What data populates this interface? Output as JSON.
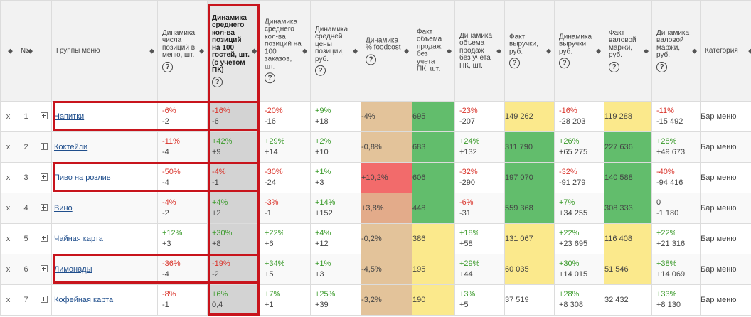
{
  "headers": {
    "x_col": "",
    "num": "№",
    "group": "Группы меню",
    "pos_count": "Динамика числа позиций в меню, шт.",
    "avg_pos_100": "Динамика среднего кол-ва позиций на 100 гостей, шт. (с учетом ПК)",
    "avg_pos_100_orders": "Динамика среднего кол-ва позиций на 100 заказов, шт.",
    "avg_price": "Динамика средней цены позиции, руб.",
    "foodcost": "Динамика % foodcost",
    "fact_sales": "Факт объема продаж без учета ПК, шт.",
    "dyn_sales": "Динамика объема продаж без учета ПК, шт.",
    "fact_revenue": "Факт выручки, руб.",
    "dyn_revenue": "Динамика выручки, руб.",
    "fact_margin": "Факт валовой маржи, руб.",
    "dyn_margin": "Динамика валовой маржи, руб.",
    "category": "Категория"
  },
  "help_symbol": "?",
  "sort_symbol": "◆",
  "colors": {
    "red_outline": "#c8141c",
    "pct_negative": "#d9342b",
    "pct_positive": "#3a9a2a",
    "cell_green": "#62bd6c",
    "cell_yellow": "#fbe98c",
    "cell_orange": "#e9b98c",
    "cell_red": "#f26b6b",
    "cell_tan": "#e3c39a",
    "highlight_column": "#d3d3d3"
  },
  "rows": [
    {
      "x": "x",
      "num": "1",
      "name": "Напитки",
      "pos_pct": "-6%",
      "pos_abs": "-2",
      "avg100_pct": "-16%",
      "avg100_abs": "-6",
      "ord_pct": "-20%",
      "ord_abs": "-16",
      "price_pct": "+9%",
      "price_abs": "+18",
      "foodcost": "-4%",
      "foodcost_color": "#e3c39a",
      "fact_sales": "695",
      "fact_sales_color": "#62bd6c",
      "dyn_sales_pct": "-23%",
      "dyn_sales_abs": "-207",
      "fact_rev": "149 262",
      "fact_rev_color": "#fbe98c",
      "dyn_rev_pct": "-16%",
      "dyn_rev_abs": "-28 203",
      "fact_margin": "119 288",
      "fact_margin_color": "#fbe98c",
      "dyn_margin_pct": "-11%",
      "dyn_margin_abs": "-15 492",
      "category": "Бар меню"
    },
    {
      "x": "x",
      "num": "2",
      "name": "Коктейли",
      "pos_pct": "-11%",
      "pos_abs": "-4",
      "avg100_pct": "+42%",
      "avg100_abs": "+9",
      "ord_pct": "+29%",
      "ord_abs": "+14",
      "price_pct": "+2%",
      "price_abs": "+10",
      "foodcost": "-0,8%",
      "foodcost_color": "#e3c39a",
      "fact_sales": "683",
      "fact_sales_color": "#62bd6c",
      "dyn_sales_pct": "+24%",
      "dyn_sales_abs": "+132",
      "fact_rev": "311 790",
      "fact_rev_color": "#62bd6c",
      "dyn_rev_pct": "+26%",
      "dyn_rev_abs": "+65 275",
      "fact_margin": "227 636",
      "fact_margin_color": "#62bd6c",
      "dyn_margin_pct": "+28%",
      "dyn_margin_abs": "+49 673",
      "category": "Бар меню"
    },
    {
      "x": "x",
      "num": "3",
      "name": "Пиво на розлив",
      "pos_pct": "-50%",
      "pos_abs": "-4",
      "avg100_pct": "-4%",
      "avg100_abs": "-1",
      "ord_pct": "-30%",
      "ord_abs": "-24",
      "price_pct": "+1%",
      "price_abs": "+3",
      "foodcost": "+10,2%",
      "foodcost_color": "#f26b6b",
      "fact_sales": "606",
      "fact_sales_color": "#62bd6c",
      "dyn_sales_pct": "-32%",
      "dyn_sales_abs": "-290",
      "fact_rev": "197 070",
      "fact_rev_color": "#62bd6c",
      "dyn_rev_pct": "-32%",
      "dyn_rev_abs": "-91 279",
      "fact_margin": "140 588",
      "fact_margin_color": "#62bd6c",
      "dyn_margin_pct": "-40%",
      "dyn_margin_abs": "-94 416",
      "category": "Бар меню"
    },
    {
      "x": "x",
      "num": "4",
      "name": "Вино",
      "pos_pct": "-4%",
      "pos_abs": "-2",
      "avg100_pct": "+4%",
      "avg100_abs": "+2",
      "ord_pct": "-3%",
      "ord_abs": "-1",
      "price_pct": "+14%",
      "price_abs": "+152",
      "foodcost": "+3,8%",
      "foodcost_color": "#e3ab8a",
      "fact_sales": "448",
      "fact_sales_color": "#62bd6c",
      "dyn_sales_pct": "-6%",
      "dyn_sales_abs": "-31",
      "fact_rev": "559 368",
      "fact_rev_color": "#62bd6c",
      "dyn_rev_pct": "+7%",
      "dyn_rev_abs": "+34 255",
      "fact_margin": "308 333",
      "fact_margin_color": "#62bd6c",
      "dyn_margin_pct": "0",
      "dyn_margin_abs": "-1 180",
      "category": "Бар меню"
    },
    {
      "x": "x",
      "num": "5",
      "name": "Чайная карта",
      "pos_pct": "+12%",
      "pos_abs": "+3",
      "avg100_pct": "+30%",
      "avg100_abs": "+8",
      "ord_pct": "+22%",
      "ord_abs": "+6",
      "price_pct": "+4%",
      "price_abs": "+12",
      "foodcost": "-0,2%",
      "foodcost_color": "#e3c39a",
      "fact_sales": "386",
      "fact_sales_color": "#fbe98c",
      "dyn_sales_pct": "+18%",
      "dyn_sales_abs": "+58",
      "fact_rev": "131 067",
      "fact_rev_color": "#fbe98c",
      "dyn_rev_pct": "+22%",
      "dyn_rev_abs": "+23 695",
      "fact_margin": "116 408",
      "fact_margin_color": "#fbe98c",
      "dyn_margin_pct": "+22%",
      "dyn_margin_abs": "+21 316",
      "category": "Бар меню"
    },
    {
      "x": "x",
      "num": "6",
      "name": "Лимонады",
      "pos_pct": "-36%",
      "pos_abs": "-4",
      "avg100_pct": "-19%",
      "avg100_abs": "-2",
      "ord_pct": "+34%",
      "ord_abs": "+5",
      "price_pct": "+1%",
      "price_abs": "+3",
      "foodcost": "-4,5%",
      "foodcost_color": "#e3c39a",
      "fact_sales": "195",
      "fact_sales_color": "#fbe98c",
      "dyn_sales_pct": "+29%",
      "dyn_sales_abs": "+44",
      "fact_rev": "60 035",
      "fact_rev_color": "#fbe98c",
      "dyn_rev_pct": "+30%",
      "dyn_rev_abs": "+14 015",
      "fact_margin": "51 546",
      "fact_margin_color": "#fbe98c",
      "dyn_margin_pct": "+38%",
      "dyn_margin_abs": "+14 069",
      "category": "Бар меню"
    },
    {
      "x": "x",
      "num": "7",
      "name": "Кофейная карта",
      "pos_pct": "-8%",
      "pos_abs": "-1",
      "avg100_pct": "+6%",
      "avg100_abs": "0,4",
      "ord_pct": "+7%",
      "ord_abs": "+1",
      "price_pct": "+25%",
      "price_abs": "+39",
      "foodcost": "-3,2%",
      "foodcost_color": "#e3c39a",
      "fact_sales": "190",
      "fact_sales_color": "#fbe98c",
      "dyn_sales_pct": "+3%",
      "dyn_sales_abs": "+5",
      "fact_rev": "37 519",
      "fact_rev_color": "",
      "dyn_rev_pct": "+28%",
      "dyn_rev_abs": "+8 308",
      "fact_margin": "32 432",
      "fact_margin_color": "",
      "dyn_margin_pct": "+33%",
      "dyn_margin_abs": "+8 130",
      "category": "Бар меню"
    }
  ]
}
